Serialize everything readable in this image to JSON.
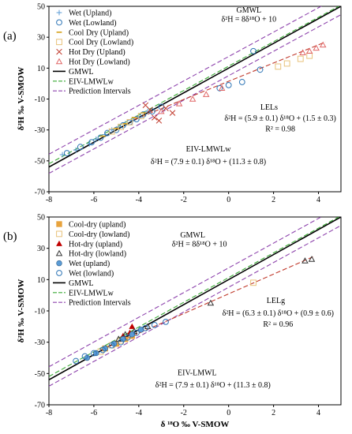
{
  "chart_data": [
    {
      "type": "scatter",
      "panel_label": "(a)",
      "xlabel": "",
      "ylabel": "δ²H ‰ V-SMOW",
      "xlim": [
        -8,
        5
      ],
      "ylim": [
        -70,
        50
      ],
      "xticks": [
        -8,
        -6,
        -4,
        -2,
        0,
        2,
        4
      ],
      "yticks": [
        -70,
        -50,
        -30,
        -10,
        10,
        30,
        50
      ],
      "legend_position": "top-left",
      "legend": [
        {
          "label": "Wet (Upland)",
          "marker": "plus",
          "color": "#5b9bd5"
        },
        {
          "label": "Wet (Lowland)",
          "marker": "circle-open",
          "color": "#2e75b6"
        },
        {
          "label": "Cool Dry (Upland)",
          "marker": "dash",
          "color": "#d4a017"
        },
        {
          "label": "Cool Dry (Lowland)",
          "marker": "square-open",
          "color": "#e8c27a"
        },
        {
          "label": "Hot Dry (Upland)",
          "marker": "cross",
          "color": "#c0392b"
        },
        {
          "label": "Hot Dry (Lowland)",
          "marker": "triangle-open",
          "color": "#e06666"
        },
        {
          "label": "GMWL",
          "marker": "solid-line",
          "color": "#000000"
        },
        {
          "label": "EIV-LMWLw",
          "marker": "dash-line",
          "color": "#3aaa35"
        },
        {
          "label": "Prediction Intervals",
          "marker": "dash-line",
          "color": "#8e44ad"
        }
      ],
      "lines": [
        {
          "name": "GMWL",
          "slope": 8,
          "intercept": 10,
          "x_range": [
            -8,
            5
          ],
          "color": "#000000",
          "style": "solid"
        },
        {
          "name": "EIV-LMWLw",
          "slope": 7.9,
          "intercept": 11.3,
          "x_range": [
            -8,
            5
          ],
          "color": "#3aaa35",
          "style": "dash"
        },
        {
          "name": "Prediction Intervals upper",
          "slope": 7.9,
          "intercept": 17.5,
          "x_range": [
            -8,
            5
          ],
          "color": "#8e44ad",
          "style": "dash"
        },
        {
          "name": "Prediction Intervals lower",
          "slope": 7.9,
          "intercept": 5.1,
          "x_range": [
            -8,
            5
          ],
          "color": "#8e44ad",
          "style": "dash"
        },
        {
          "name": "LELs",
          "slope": 5.9,
          "intercept": 1.5,
          "x_range": [
            -4.2,
            4.3
          ],
          "color": "#c0392b",
          "style": "dash"
        }
      ],
      "series": [
        {
          "name": "Wet (Upland)",
          "marker": "plus",
          "color": "#5b9bd5",
          "points": [
            [
              -7.4,
              -46
            ],
            [
              -6.8,
              -43
            ],
            [
              -6.2,
              -39
            ],
            [
              -5.9,
              -36
            ],
            [
              -5.5,
              -33
            ],
            [
              -5.2,
              -30
            ],
            [
              -4.9,
              -28
            ],
            [
              -4.6,
              -26
            ],
            [
              -4.3,
              -24
            ],
            [
              -4.0,
              -22
            ],
            [
              -3.6,
              -18
            ]
          ]
        },
        {
          "name": "Wet (Lowland)",
          "marker": "circle-open",
          "color": "#2e75b6",
          "points": [
            [
              -7.2,
              -45
            ],
            [
              -6.6,
              -41
            ],
            [
              -6.1,
              -38
            ],
            [
              -5.7,
              -35
            ],
            [
              -5.4,
              -32
            ],
            [
              -5.0,
              -30
            ],
            [
              -4.7,
              -27
            ],
            [
              -4.4,
              -25
            ],
            [
              -4.1,
              -23
            ],
            [
              -3.8,
              -20
            ],
            [
              -3.4,
              -18
            ],
            [
              -3.0,
              -15
            ],
            [
              -0.4,
              -3
            ],
            [
              0.0,
              -1
            ],
            [
              0.6,
              1
            ],
            [
              1.1,
              21
            ],
            [
              1.4,
              9
            ]
          ]
        },
        {
          "name": "Cool Dry (Upland)",
          "marker": "dash",
          "color": "#d4a017",
          "points": [
            [
              -5.6,
              -34
            ],
            [
              -5.0,
              -29
            ],
            [
              -4.6,
              -26
            ],
            [
              -4.2,
              -22
            ],
            [
              -3.8,
              -19
            ]
          ]
        },
        {
          "name": "Cool Dry (Lowland)",
          "marker": "square-open",
          "color": "#e8c27a",
          "points": [
            [
              -5.2,
              -31
            ],
            [
              -4.8,
              -28
            ],
            [
              -4.4,
              -25
            ],
            [
              -3.9,
              -21
            ],
            [
              2.2,
              11
            ],
            [
              2.6,
              13
            ],
            [
              3.2,
              16
            ],
            [
              3.6,
              18
            ]
          ]
        },
        {
          "name": "Hot Dry (Upland)",
          "marker": "cross",
          "color": "#c0392b",
          "points": [
            [
              -3.7,
              -14
            ],
            [
              -3.5,
              -17
            ],
            [
              -3.3,
              -22
            ],
            [
              -3.1,
              -24
            ],
            [
              -2.8,
              -16
            ],
            [
              -2.5,
              -19
            ]
          ]
        },
        {
          "name": "Hot Dry (Lowland)",
          "marker": "triangle-open",
          "color": "#e06666",
          "points": [
            [
              -3.0,
              -18
            ],
            [
              -2.2,
              -13
            ],
            [
              -1.6,
              -10
            ],
            [
              -1.0,
              -7
            ],
            [
              -0.3,
              -3
            ],
            [
              3.3,
              20
            ],
            [
              3.6,
              21
            ],
            [
              3.9,
              23
            ],
            [
              4.2,
              25
            ]
          ]
        }
      ],
      "annotations": [
        {
          "text": "GMWL",
          "x": 0.9,
          "y": 46
        },
        {
          "text": "δ²H = 8δ¹⁸O + 10",
          "x": 0.9,
          "y": 40
        },
        {
          "text": "LELs",
          "x": 1.8,
          "y": -17
        },
        {
          "text": "δ²H = (5.9 ± 0.1) δ¹⁸O + (1.5 ± 0.3)",
          "x": 2.3,
          "y": -24
        },
        {
          "text": "R² = 0.98",
          "x": 2.3,
          "y": -31
        },
        {
          "text": "EIV-LMWLw",
          "x": -0.9,
          "y": -44
        },
        {
          "text": "δ²H = (7.9 ± 0.1) δ¹⁸O + (11.3 ± 0.8)",
          "x": -0.9,
          "y": -52
        }
      ]
    },
    {
      "type": "scatter",
      "panel_label": "(b)",
      "xlabel": "δ ¹⁸O ‰ V-SMOW",
      "ylabel": "δ²H ‰ V-SMOW",
      "xlim": [
        -8,
        5
      ],
      "ylim": [
        -70,
        50
      ],
      "xticks": [
        -8,
        -6,
        -4,
        -2,
        0,
        2,
        4
      ],
      "yticks": [
        -70,
        -50,
        -30,
        -10,
        10,
        30,
        50
      ],
      "legend_position": "top-left",
      "legend": [
        {
          "label": "Cool-dry (upland)",
          "marker": "square-filled",
          "color": "#e8a33d"
        },
        {
          "label": "Cool-dry (lowland)",
          "marker": "square-open",
          "color": "#e8c27a"
        },
        {
          "label": "Hot-dry (upland)",
          "marker": "triangle-filled",
          "color": "#c00000"
        },
        {
          "label": "Hot-dry (lowland)",
          "marker": "triangle-open",
          "color": "#333333"
        },
        {
          "label": "Wet (upland)",
          "marker": "circle-filled",
          "color": "#5b9bd5"
        },
        {
          "label": "Wet (lowland)",
          "marker": "circle-open",
          "color": "#2e75b6"
        },
        {
          "label": "GMWL",
          "marker": "solid-line",
          "color": "#000000"
        },
        {
          "label": "EIV-LMWLw",
          "marker": "dash-line",
          "color": "#3aaa35"
        },
        {
          "label": "Prediction Intervals",
          "marker": "dash-line",
          "color": "#8e44ad"
        }
      ],
      "lines": [
        {
          "name": "GMWL",
          "slope": 8,
          "intercept": 10,
          "x_range": [
            -8,
            5
          ],
          "color": "#000000",
          "style": "solid"
        },
        {
          "name": "EIV-LMWLw",
          "slope": 7.9,
          "intercept": 11.3,
          "x_range": [
            -8,
            5
          ],
          "color": "#3aaa35",
          "style": "dash"
        },
        {
          "name": "Prediction Intervals upper",
          "slope": 7.9,
          "intercept": 17.5,
          "x_range": [
            -8,
            5
          ],
          "color": "#8e44ad",
          "style": "dash"
        },
        {
          "name": "Prediction Intervals lower",
          "slope": 7.9,
          "intercept": 5.1,
          "x_range": [
            -8,
            5
          ],
          "color": "#8e44ad",
          "style": "dash"
        },
        {
          "name": "LELg",
          "slope": 6.3,
          "intercept": 0.9,
          "x_range": [
            -6.0,
            3.8
          ],
          "color": "#c0392b",
          "style": "dash"
        }
      ],
      "series": [
        {
          "name": "Cool-dry (upland)",
          "marker": "square-filled",
          "color": "#e8a33d",
          "points": [
            [
              -5.5,
              -34
            ],
            [
              -5.0,
              -31
            ],
            [
              -4.6,
              -28
            ],
            [
              -4.3,
              -26
            ]
          ]
        },
        {
          "name": "Cool-dry (lowland)",
          "marker": "square-open",
          "color": "#e8c27a",
          "points": [
            [
              -5.7,
              -36
            ],
            [
              -5.2,
              -32
            ],
            [
              -4.8,
              -29
            ],
            [
              1.1,
              8
            ]
          ]
        },
        {
          "name": "Hot-dry (upland)",
          "marker": "triangle-filled",
          "color": "#c00000",
          "points": [
            [
              -4.7,
              -26
            ],
            [
              -4.4,
              -24
            ],
            [
              -4.3,
              -20
            ]
          ]
        },
        {
          "name": "Hot-dry (lowland)",
          "marker": "triangle-open",
          "color": "#333333",
          "points": [
            [
              -4.9,
              -28
            ],
            [
              -4.6,
              -25
            ],
            [
              -4.2,
              -23
            ],
            [
              -3.6,
              -20
            ],
            [
              -0.8,
              -5
            ],
            [
              3.4,
              22
            ],
            [
              3.7,
              23
            ]
          ]
        },
        {
          "name": "Wet (upland)",
          "marker": "circle-filled",
          "color": "#5b9bd5",
          "points": [
            [
              -6.3,
              -40
            ],
            [
              -5.9,
              -37
            ],
            [
              -5.5,
              -34
            ],
            [
              -5.1,
              -31
            ],
            [
              -4.7,
              -28
            ],
            [
              -4.3,
              -25
            ],
            [
              -3.9,
              -22
            ]
          ]
        },
        {
          "name": "Wet (lowland)",
          "marker": "circle-open",
          "color": "#2e75b6",
          "points": [
            [
              -6.8,
              -42
            ],
            [
              -6.4,
              -39
            ],
            [
              -6.0,
              -37
            ],
            [
              -5.6,
              -35
            ],
            [
              -5.2,
              -32
            ],
            [
              -4.8,
              -30
            ],
            [
              -4.5,
              -27
            ],
            [
              -4.1,
              -24
            ],
            [
              -3.7,
              -21
            ],
            [
              -3.3,
              -19
            ],
            [
              -2.8,
              -17
            ]
          ]
        }
      ],
      "annotations": [
        {
          "text": "GMWL",
          "x": -1.6,
          "y": 37
        },
        {
          "text": "δ²H = 8δ¹⁸O + 10",
          "x": -1.3,
          "y": 31
        },
        {
          "text": "LELg",
          "x": 2.1,
          "y": -5
        },
        {
          "text": "δ²H = (6.3 ± 0.1) δ¹⁸O + (0.9 ± 0.6)",
          "x": 2.2,
          "y": -13
        },
        {
          "text": "R² = 0.96",
          "x": 2.2,
          "y": -20
        },
        {
          "text": "EIV-LMWL",
          "x": -1.4,
          "y": -51
        },
        {
          "text": "δ²H = (7.9 ± 0.1) δ¹⁸O + (11.3 ± 0.8)",
          "x": -0.7,
          "y": -59
        }
      ]
    }
  ]
}
